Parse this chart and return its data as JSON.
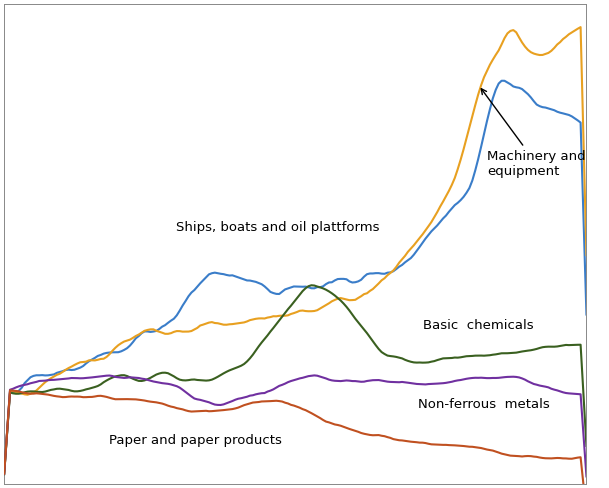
{
  "background_color": "#ffffff",
  "plot_bg_color": "#ffffff",
  "grid_color": "#cccccc",
  "n_points": 200,
  "colors": {
    "ships": "#3A7DC9",
    "machinery": "#E8A020",
    "chemicals": "#3A6020",
    "nonferrous": "#7030A0",
    "paper": "#C05020"
  },
  "ylim": [
    55,
    285
  ],
  "xlim": [
    0,
    1.0
  ]
}
